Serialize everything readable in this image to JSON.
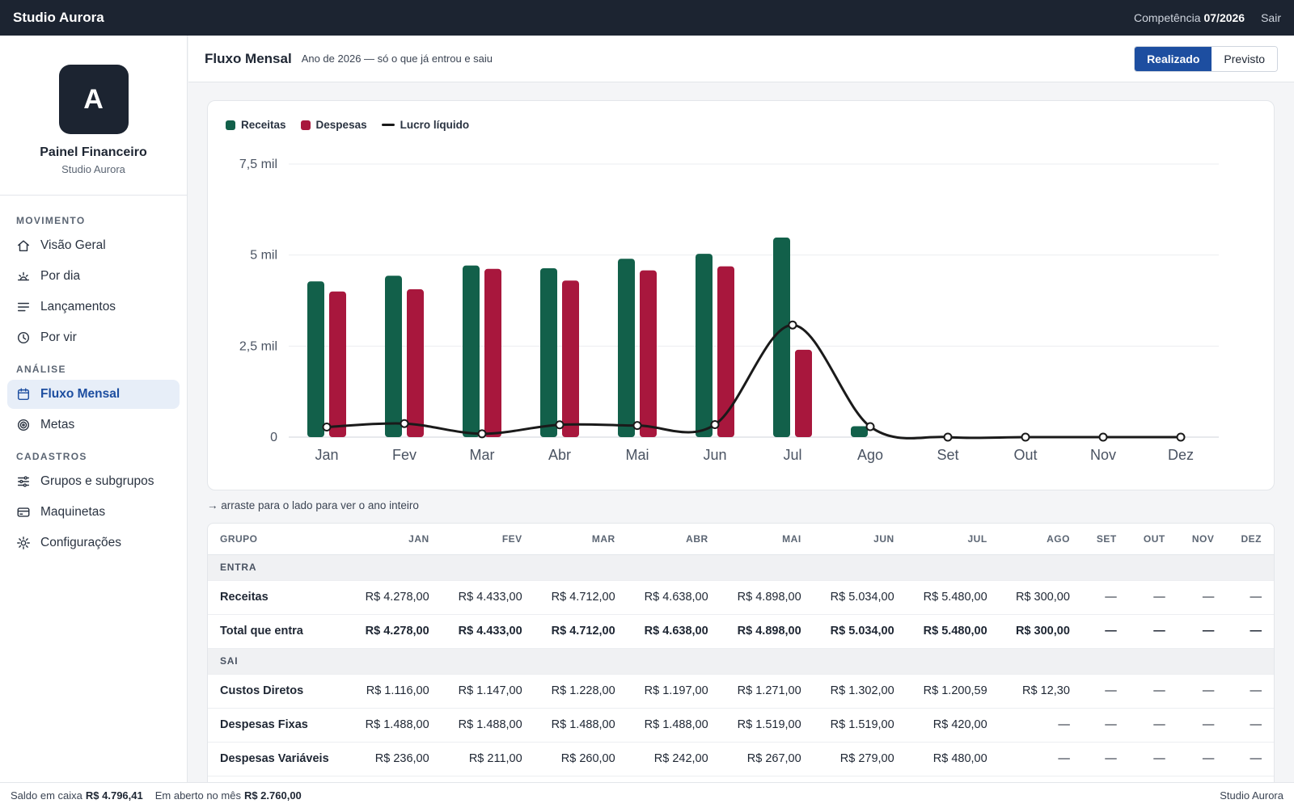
{
  "app": {
    "brand": "Studio Aurora",
    "period_label": "Competência",
    "period_value": "07/2026",
    "logout": "Sair"
  },
  "profile": {
    "initial": "A",
    "title": "Painel Financeiro",
    "subtitle": "Studio Aurora"
  },
  "sidebar": {
    "sections": [
      {
        "label": "MOVIMENTO",
        "items": [
          {
            "label": "Visão Geral",
            "icon": "home-icon"
          },
          {
            "label": "Por dia",
            "icon": "sunrise-icon"
          },
          {
            "label": "Lançamentos",
            "icon": "list-icon"
          },
          {
            "label": "Por vir",
            "icon": "clock-icon"
          }
        ]
      },
      {
        "label": "ANÁLISE",
        "items": [
          {
            "label": "Fluxo Mensal",
            "icon": "calendar-icon",
            "active": true
          },
          {
            "label": "Metas",
            "icon": "target-icon"
          }
        ]
      },
      {
        "label": "CADASTROS",
        "items": [
          {
            "label": "Grupos e subgrupos",
            "icon": "sliders-icon"
          },
          {
            "label": "Maquinetas",
            "icon": "card-icon"
          },
          {
            "label": "Configurações",
            "icon": "gear-icon"
          }
        ]
      }
    ]
  },
  "header": {
    "title": "Fluxo Mensal",
    "subtitle": "Ano de 2026 — só o que já entrou e saiu",
    "toggle": [
      "Realizado",
      "Previsto"
    ],
    "toggle_selected": "Realizado"
  },
  "chart_data": {
    "type": "bar",
    "categories": [
      "Jan",
      "Fev",
      "Mar",
      "Abr",
      "Mai",
      "Jun",
      "Jul",
      "Ago",
      "Set",
      "Out",
      "Nov",
      "Dez"
    ],
    "series": [
      {
        "name": "Receitas",
        "type": "bar",
        "color": "#12604a",
        "values": [
          4278,
          4433,
          4712,
          4638,
          4898,
          5034,
          5480,
          300,
          0,
          0,
          0,
          0
        ]
      },
      {
        "name": "Despesas",
        "type": "bar",
        "color": "#a8173d",
        "values": [
          4000,
          4060,
          4620,
          4300,
          4580,
          4690,
          2400,
          0,
          0,
          0,
          0,
          0
        ]
      },
      {
        "name": "Lucro líquido",
        "type": "line",
        "color": "#1a1a1a",
        "values": [
          278,
          373,
          92,
          338,
          318,
          344,
          3080,
          288,
          0,
          0,
          0,
          0
        ]
      }
    ],
    "y_ticks": [
      "0",
      "2,5 mil",
      "5 mil",
      "7,5 mil"
    ],
    "ylim": [
      0,
      7500
    ],
    "grid": true,
    "legend": "top-left"
  },
  "hint": "→ arraste para o lado para ver o ano inteiro",
  "table": {
    "columns": [
      "GRUPO",
      "JAN",
      "FEV",
      "MAR",
      "ABR",
      "MAI",
      "JUN",
      "JUL",
      "AGO",
      "SET",
      "OUT",
      "NOV",
      "DEZ"
    ],
    "sections": [
      {
        "label": "ENTRA",
        "rows": [
          {
            "name": "Receitas",
            "values": [
              "R$ 4.278,00",
              "R$ 4.433,00",
              "R$ 4.712,00",
              "R$ 4.638,00",
              "R$ 4.898,00",
              "R$ 5.034,00",
              "R$ 5.480,00",
              "R$ 300,00",
              "—",
              "—",
              "—",
              "—"
            ]
          },
          {
            "name": "Total que entra",
            "total": true,
            "values": [
              "R$ 4.278,00",
              "R$ 4.433,00",
              "R$ 4.712,00",
              "R$ 4.638,00",
              "R$ 4.898,00",
              "R$ 5.034,00",
              "R$ 5.480,00",
              "R$ 300,00",
              "—",
              "—",
              "—",
              "—"
            ]
          }
        ]
      },
      {
        "label": "SAI",
        "rows": [
          {
            "name": "Custos Diretos",
            "values": [
              "R$ 1.116,00",
              "R$ 1.147,00",
              "R$ 1.228,00",
              "R$ 1.197,00",
              "R$ 1.271,00",
              "R$ 1.302,00",
              "R$ 1.200,59",
              "R$ 12,30",
              "—",
              "—",
              "—",
              "—"
            ]
          },
          {
            "name": "Despesas Fixas",
            "values": [
              "R$ 1.488,00",
              "R$ 1.488,00",
              "R$ 1.488,00",
              "R$ 1.488,00",
              "R$ 1.519,00",
              "R$ 1.519,00",
              "R$ 420,00",
              "—",
              "—",
              "—",
              "—",
              "—"
            ]
          },
          {
            "name": "Despesas Variáveis",
            "values": [
              "R$ 236,00",
              "R$ 211,00",
              "R$ 260,00",
              "R$ 242,00",
              "R$ 267,00",
              "R$ 279,00",
              "R$ 480,00",
              "—",
              "—",
              "—",
              "—",
              "—"
            ]
          }
        ]
      }
    ]
  },
  "footer": {
    "balance_label": "Saldo em caixa",
    "balance_value": "R$ 4.796,41",
    "open_label": "Em aberto no mês",
    "open_value": "R$ 2.760,00",
    "right": "Studio Aurora"
  }
}
